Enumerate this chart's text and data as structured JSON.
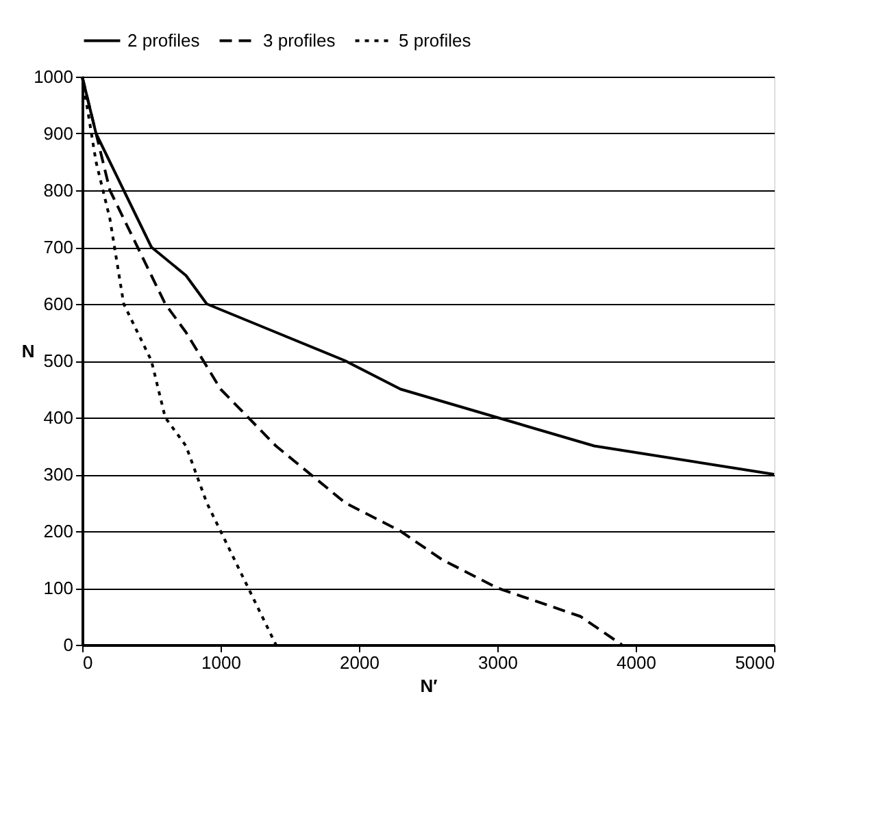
{
  "chart_data": {
    "type": "line",
    "xlabel": "N′",
    "ylabel": "N",
    "xlim": [
      0,
      5000
    ],
    "xticks": [
      0,
      1000,
      2000,
      3000,
      4000,
      5000
    ],
    "ylim": [
      0,
      1000
    ],
    "yticks": [
      0,
      100,
      200,
      300,
      400,
      500,
      600,
      700,
      800,
      900,
      1000
    ],
    "grid": "y",
    "legend": "top",
    "marker": "none",
    "series": [
      {
        "name": "2 profiles",
        "color": "#000000",
        "line_style": "solid",
        "x": [
          0,
          100,
          200,
          300,
          400,
          500,
          750,
          900,
          1400,
          1900,
          2300,
          3000,
          3700,
          5000
        ],
        "values": [
          1000,
          900,
          850,
          800,
          750,
          700,
          650,
          600,
          550,
          500,
          450,
          400,
          350,
          300
        ]
      },
      {
        "name": "3 profiles",
        "color": "#000000",
        "line_style": "dashed",
        "x": [
          0,
          100,
          200,
          300,
          400,
          500,
          600,
          750,
          1000,
          1400,
          1900,
          2300,
          2600,
          3000,
          3600,
          3900
        ],
        "values": [
          1000,
          900,
          800,
          750,
          700,
          650,
          600,
          550,
          450,
          350,
          250,
          200,
          150,
          100,
          50,
          0
        ]
      },
      {
        "name": "5 profiles",
        "color": "#000000",
        "line_style": "dotted",
        "x": [
          0,
          100,
          200,
          300,
          400,
          500,
          600,
          750,
          900,
          1000,
          1200,
          1400
        ],
        "values": [
          1000,
          850,
          750,
          600,
          550,
          500,
          400,
          350,
          250,
          200,
          100,
          0
        ]
      }
    ]
  }
}
